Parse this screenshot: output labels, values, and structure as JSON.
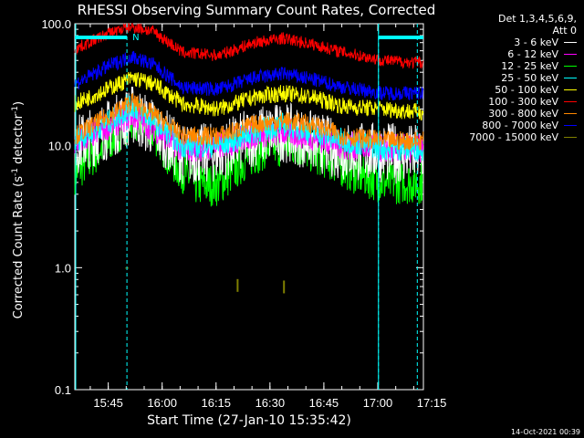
{
  "chart_data": {
    "type": "line",
    "title": "RHESSI Observing Summary Count Rates, Corrected",
    "xlabel": "Start Time (27-Jan-10 15:35:42)",
    "ylabel_main": "Corrected Count Rate (s",
    "ylabel_sup": "-1",
    "ylabel_end": " detector",
    "ylabel_sup2": "-1",
    "ylabel_close": ")",
    "y_scale": "log",
    "ylim": [
      0.1,
      100
    ],
    "xlim_minutes": [
      0,
      97
    ],
    "y_ticks": [
      "100.0",
      "10.0",
      "1.0",
      "0.1"
    ],
    "y_tick_values": [
      100,
      10,
      1,
      0.1
    ],
    "x_ticks": [
      "15:45",
      "16:00",
      "16:15",
      "16:30",
      "16:45",
      "17:00",
      "17:15"
    ],
    "x_tick_minutes": [
      9.3,
      24.3,
      39.3,
      54.3,
      69.3,
      84.3,
      99.3
    ],
    "legend_header": [
      "Det 1,3,4,5,6,9,",
      "Att 0"
    ],
    "series": [
      {
        "name": "3 - 6 keV",
        "color": "#ffffff",
        "points": [
          [
            0,
            10
          ],
          [
            10,
            14
          ],
          [
            16,
            18
          ],
          [
            22,
            14
          ],
          [
            30,
            8.5
          ],
          [
            40,
            8.8
          ],
          [
            50,
            12
          ],
          [
            58,
            13
          ],
          [
            66,
            11
          ],
          [
            75,
            9
          ],
          [
            86,
            8.8
          ],
          [
            95,
            8.5
          ]
        ],
        "jitter": 0.25
      },
      {
        "name": "6 - 12 keV",
        "color": "#ff00ff",
        "points": [
          [
            0,
            10.5
          ],
          [
            10,
            15
          ],
          [
            16,
            18
          ],
          [
            22,
            14
          ],
          [
            30,
            9.5
          ],
          [
            40,
            10
          ],
          [
            50,
            12.5
          ],
          [
            58,
            13
          ],
          [
            66,
            12
          ],
          [
            75,
            10
          ],
          [
            86,
            9.5
          ],
          [
            95,
            9.5
          ]
        ],
        "jitter": 0.12
      },
      {
        "name": "12 - 25 keV",
        "color": "#00ff00",
        "points": [
          [
            0,
            6
          ],
          [
            8,
            10
          ],
          [
            16,
            17
          ],
          [
            22,
            13
          ],
          [
            28,
            7
          ],
          [
            34,
            4.8
          ],
          [
            40,
            4.8
          ],
          [
            48,
            8
          ],
          [
            54,
            10
          ],
          [
            62,
            10
          ],
          [
            70,
            8
          ],
          [
            78,
            6
          ],
          [
            86,
            5
          ],
          [
            95,
            5
          ]
        ],
        "jitter": 0.18
      },
      {
        "name": "25 - 50 keV",
        "color": "#00ffff",
        "points": [
          [
            0,
            11
          ],
          [
            10,
            16
          ],
          [
            16,
            21
          ],
          [
            22,
            16
          ],
          [
            30,
            10
          ],
          [
            40,
            10
          ],
          [
            50,
            13
          ],
          [
            58,
            15
          ],
          [
            66,
            13
          ],
          [
            75,
            11
          ],
          [
            86,
            9.5
          ],
          [
            95,
            9.5
          ]
        ],
        "jitter": 0.1
      },
      {
        "name": "50 - 100 keV",
        "color": "#ffff00",
        "points": [
          [
            0,
            22
          ],
          [
            10,
            30
          ],
          [
            16,
            36
          ],
          [
            22,
            32
          ],
          [
            30,
            22
          ],
          [
            40,
            20
          ],
          [
            50,
            25
          ],
          [
            58,
            27
          ],
          [
            66,
            25
          ],
          [
            75,
            21
          ],
          [
            86,
            20
          ],
          [
            95,
            19
          ]
        ],
        "jitter": 0.07
      },
      {
        "name": "100 - 300 keV",
        "color": "#ff0000",
        "points": [
          [
            0,
            62
          ],
          [
            10,
            85
          ],
          [
            16,
            95
          ],
          [
            22,
            86
          ],
          [
            30,
            58
          ],
          [
            40,
            55
          ],
          [
            50,
            70
          ],
          [
            58,
            76
          ],
          [
            66,
            68
          ],
          [
            75,
            58
          ],
          [
            86,
            50
          ],
          [
            95,
            48
          ]
        ],
        "jitter": 0.05
      },
      {
        "name": "300 - 800 keV",
        "color": "#ff8800",
        "points": [
          [
            0,
            12
          ],
          [
            10,
            18
          ],
          [
            16,
            23
          ],
          [
            22,
            18
          ],
          [
            30,
            12
          ],
          [
            40,
            12
          ],
          [
            50,
            15
          ],
          [
            58,
            16
          ],
          [
            66,
            15
          ],
          [
            75,
            12
          ],
          [
            86,
            11
          ],
          [
            95,
            11
          ]
        ],
        "jitter": 0.08
      },
      {
        "name": "800 - 7000 keV",
        "color": "#0000ff",
        "points": [
          [
            0,
            32
          ],
          [
            10,
            46
          ],
          [
            16,
            54
          ],
          [
            22,
            46
          ],
          [
            30,
            30
          ],
          [
            40,
            29
          ],
          [
            50,
            36
          ],
          [
            58,
            39
          ],
          [
            66,
            35
          ],
          [
            75,
            30
          ],
          [
            86,
            27
          ],
          [
            95,
            27
          ]
        ],
        "jitter": 0.06
      },
      {
        "name": "7000 - 15000 keV",
        "color": "#808000",
        "points": [],
        "jitter": 0
      }
    ],
    "mark_7000": [
      [
        45.3,
        0.72
      ],
      [
        58.2,
        0.7
      ]
    ],
    "flag_bars": [
      [
        0,
        14.5
      ],
      [
        84.5,
        97
      ]
    ],
    "dashed_lines": [
      14.5,
      84.5,
      95.3
    ],
    "dot_marker": [
      14,
      1.0
    ],
    "flag_label": "N"
  },
  "footer": {
    "timestamp": "14-Oct-2021 00:39"
  }
}
